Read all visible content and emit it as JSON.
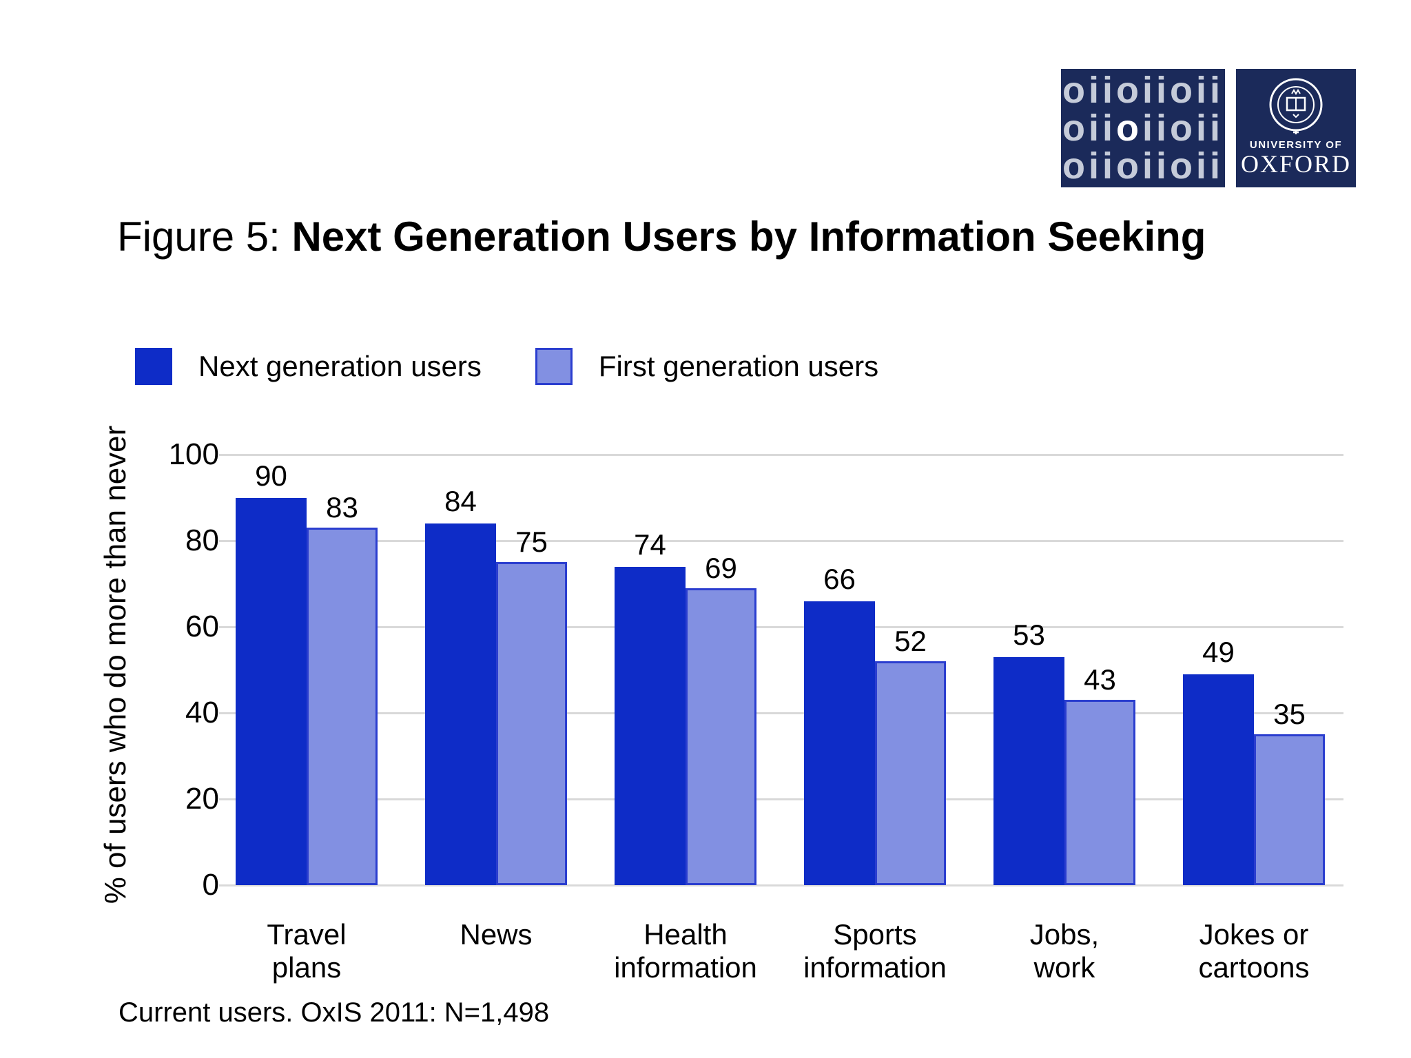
{
  "logos": {
    "oii": {
      "rows": [
        "oiioiioii",
        "oiioiioii",
        "oiioiioii"
      ],
      "highlight_row": 1,
      "highlight_char": 3,
      "bg": "#1b2a5a",
      "letter_color": "#c5cbd9",
      "highlight_color": "#ffffff"
    },
    "oxford": {
      "line1": "UNIVERSITY OF",
      "line2": "OXFORD",
      "bg": "#1b2a5a"
    }
  },
  "title": {
    "prefix": "Figure 5: ",
    "main": "Next Generation Users by Information Seeking"
  },
  "legend": [
    {
      "label": "Next generation users",
      "color": "#0e2cc7"
    },
    {
      "label": "First generation users",
      "color": "#8290e2",
      "border": "#2b3ecf"
    }
  ],
  "chart_data": {
    "type": "bar",
    "categories": [
      "Travel\nplans",
      "News",
      "Health\ninformation",
      "Sports\ninformation",
      "Jobs,\nwork",
      "Jokes or\ncartoons"
    ],
    "series": [
      {
        "name": "Next generation users",
        "values": [
          90,
          84,
          74,
          66,
          53,
          49
        ],
        "color": "#0e2cc7"
      },
      {
        "name": "First generation users",
        "values": [
          83,
          75,
          69,
          52,
          43,
          35
        ],
        "color": "#8290e2",
        "border": "#2b3ecf"
      }
    ],
    "title": "Figure 5: Next Generation Users by Information Seeking",
    "xlabel": "",
    "ylabel": "% of users who do more than never",
    "yticks": [
      0,
      20,
      40,
      60,
      80,
      100
    ],
    "ylim": [
      0,
      100
    ],
    "grid": true,
    "legend_position": "top",
    "data_labels": true
  },
  "footer": {
    "note": "Current users. OxIS 2011: N=1,498"
  }
}
